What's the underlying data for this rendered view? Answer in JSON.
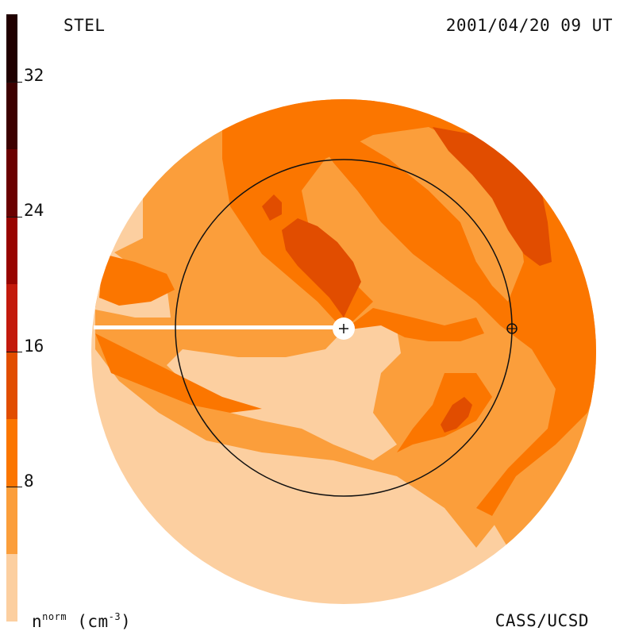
{
  "header": {
    "observatory": "STEL",
    "timestamp": "2001/04/20 09 UT"
  },
  "footer": {
    "quantity_base": "n",
    "quantity_sup": "norm",
    "unit_open": " (cm",
    "unit_sup": "-3",
    "unit_close": ")",
    "credit": "CASS/UCSD"
  },
  "colorbar": {
    "ticks": [
      "32",
      "24",
      "16",
      "8"
    ],
    "tick_values": [
      32,
      24,
      16,
      8
    ],
    "range": [
      0,
      36
    ],
    "levels": [
      {
        "from": 0,
        "to": 4,
        "color": "#fccfa0"
      },
      {
        "from": 4,
        "to": 8,
        "color": "#fb9e3b"
      },
      {
        "from": 8,
        "to": 12,
        "color": "#fb7600"
      },
      {
        "from": 12,
        "to": 16,
        "color": "#e14d00"
      },
      {
        "from": 16,
        "to": 20,
        "color": "#c31a0c"
      },
      {
        "from": 20,
        "to": 24,
        "color": "#980400"
      },
      {
        "from": 24,
        "to": 28,
        "color": "#6b0000"
      },
      {
        "from": 28,
        "to": 32,
        "color": "#3d0000"
      },
      {
        "from": 32,
        "to": 36,
        "color": "#200000"
      }
    ]
  },
  "markers": {
    "sun": "sun-plus-symbol",
    "earth": "earth-symbol"
  },
  "colors": {
    "level1": "#fccfa0",
    "level2": "#fb9e3b",
    "level3": "#fb7600",
    "level4": "#e14d00",
    "ink": "#111111"
  }
}
